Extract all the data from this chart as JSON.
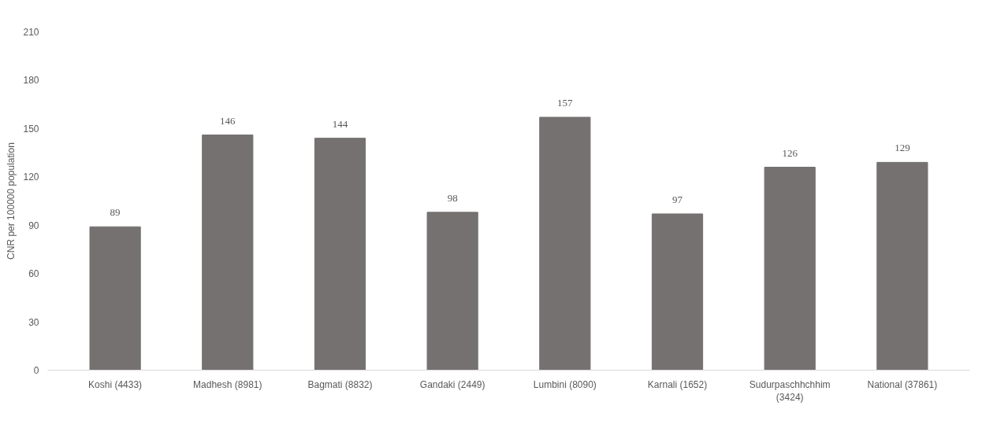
{
  "chart_data": {
    "type": "bar",
    "ylabel": "CNR per 100000 population",
    "categories": [
      "Koshi (4433)",
      "Madhesh (8981)",
      "Bagmati (8832)",
      "Gandaki (2449)",
      "Lumbini (8090)",
      "Karnali (1652)",
      "Sudurpaschhchhim (3424)",
      "National (37861)"
    ],
    "values": [
      89,
      146,
      144,
      98,
      157,
      97,
      126,
      129
    ],
    "color": "#767171",
    "ylim": [
      0,
      210
    ],
    "yticks": [
      0,
      30,
      60,
      90,
      120,
      150,
      180,
      210
    ],
    "grid": false,
    "data_labels": true
  }
}
